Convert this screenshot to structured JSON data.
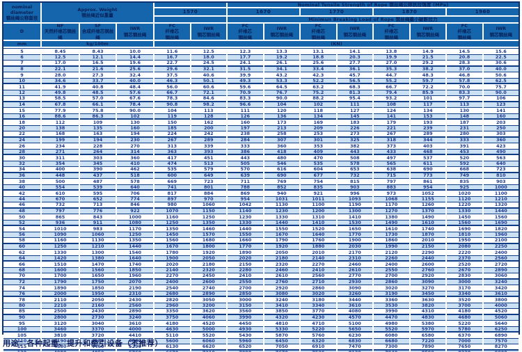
{
  "header": {
    "diameter_title": "nominal\ndiameter\n钢丝绳公称直径",
    "weight_title": "Approx. Weight\n钢丝绳近似重量",
    "tensile_banner": "Nominal Tensile Strength of Rope 钢丝绳公称抗拉强度 (MPa)",
    "breaking_banner": "Minimun Breaking Load of Rope 钢丝绳最小破断拉力",
    "strengths": [
      "1570",
      "1670",
      "1770",
      "1870",
      "1960"
    ],
    "d_symbol": "D",
    "weight_cols": [
      "NF\n天然纤维芯钢丝\n绳",
      "SF\n合成纤维芯钢丝\n绳",
      "IWR\n钢芯钢丝绳"
    ],
    "core_cols": [
      "FC\n纤维芯\n钢丝绳",
      "IWR\n钢芯钢丝绳"
    ],
    "unit_mm": "mm",
    "unit_weight": "kg/100m",
    "unit_load": "(KN)"
  },
  "rows": [
    [
      "5",
      "8.45",
      "8.43",
      "10.0",
      "11.6",
      "12.5",
      "12.3",
      "13.3",
      "13.1",
      "14.1",
      "13.8",
      "14.9",
      "14.5",
      "15.6"
    ],
    [
      "6",
      "12.5",
      "12.1",
      "14.4",
      "16.7",
      "18.0",
      "17.7",
      "19.2",
      "18.8",
      "20.3",
      "19.9",
      "21.5",
      "20.8",
      "22.5"
    ],
    [
      "7",
      "17.0",
      "16.5",
      "19.6",
      "22.7",
      "24.5",
      "24.1",
      "26.1",
      "25.6",
      "27.7",
      "27.0",
      "29.2",
      "28.3",
      "30.6"
    ],
    [
      "8",
      "22.1",
      "21.6",
      "25.6",
      "29.6",
      "32.1",
      "31.5",
      "34.1",
      "33.4",
      "36.1",
      "35.3",
      "38.2",
      "37.0",
      "40.0"
    ],
    [
      "9",
      "28.0",
      "27.3",
      "32.4",
      "37.5",
      "40.6",
      "39.9",
      "43.2",
      "42.3",
      "45.7",
      "44.7",
      "48.3",
      "46.8",
      "50.6"
    ],
    [
      "10",
      "34.6",
      "33.7",
      "40.0",
      "46.3",
      "50.1",
      "49.3",
      "53.3",
      "52.2",
      "56.5",
      "55.2",
      "59.7",
      "57.8",
      "62.5"
    ],
    [
      "11",
      "41.9",
      "40.8",
      "48.4",
      "56.0",
      "60.6",
      "59.6",
      "64.5",
      "63.2",
      "68.3",
      "66.7",
      "72.2",
      "70.0",
      "75.7"
    ],
    [
      "12",
      "49.8",
      "48.5",
      "57.6",
      "66.7",
      "72.1",
      "70.9",
      "76.7",
      "75.2",
      "81.3",
      "79.4",
      "85.9",
      "83.3",
      "90.0"
    ],
    [
      "13",
      "58.5",
      "57.0",
      "67.6",
      "78.3",
      "84.6",
      "83.3",
      "90.0",
      "88.2",
      "95.4",
      "93.2",
      "101",
      "97.7",
      "106"
    ],
    [
      "14",
      "67.8",
      "66.1",
      "78.4",
      "90.8",
      "98.2",
      "96.6",
      "104",
      "102",
      "111",
      "108",
      "117",
      "113",
      "123"
    ],
    [
      "15",
      "77.9",
      "75.8",
      "90.0",
      "104",
      "113",
      "111",
      "120",
      "118",
      "127",
      "124",
      "134",
      "130",
      "141"
    ],
    [
      "16",
      "88.6",
      "86.3",
      "102",
      "119",
      "128",
      "126",
      "136",
      "134",
      "145",
      "141",
      "153",
      "148",
      "160"
    ],
    [
      "18",
      "112",
      "109",
      "130",
      "150",
      "162",
      "160",
      "173",
      "169",
      "183",
      "179",
      "193",
      "187",
      "203"
    ],
    [
      "20",
      "138",
      "135",
      "160",
      "185",
      "200",
      "197",
      "213",
      "209",
      "226",
      "221",
      "239",
      "231",
      "250"
    ],
    [
      "22",
      "168",
      "163",
      "194",
      "224",
      "242",
      "238",
      "258",
      "253",
      "273",
      "267",
      "289",
      "280",
      "303"
    ],
    [
      "24",
      "199",
      "194",
      "230",
      "267",
      "289",
      "284",
      "307",
      "301",
      "325",
      "318",
      "344",
      "333",
      "360"
    ],
    [
      "26",
      "234",
      "228",
      "270",
      "313",
      "339",
      "333",
      "360",
      "353",
      "382",
      "373",
      "403",
      "391",
      "423"
    ],
    [
      "28",
      "271",
      "264",
      "314",
      "363",
      "393",
      "386",
      "418",
      "409",
      "443",
      "433",
      "468",
      "453",
      "490"
    ],
    [
      "30",
      "311",
      "303",
      "360",
      "417",
      "451",
      "443",
      "480",
      "470",
      "508",
      "497",
      "537",
      "520",
      "563"
    ],
    [
      "32",
      "354",
      "345",
      "410",
      "474",
      "513",
      "505",
      "546",
      "535",
      "578",
      "565",
      "611",
      "592",
      "640"
    ],
    [
      "34",
      "400",
      "390",
      "462",
      "535",
      "579",
      "570",
      "616",
      "604",
      "653",
      "638",
      "690",
      "668",
      "723"
    ],
    [
      "36",
      "448",
      "437",
      "518",
      "600",
      "649",
      "639",
      "690",
      "677",
      "732",
      "715",
      "773",
      "749",
      "810"
    ],
    [
      "38",
      "500",
      "487",
      "578",
      "669",
      "723",
      "711",
      "769",
      "754",
      "815",
      "797",
      "861",
      "835",
      "903"
    ],
    [
      "40",
      "554",
      "539",
      "640",
      "741",
      "801",
      "788",
      "852",
      "835",
      "903",
      "883",
      "954",
      "925",
      "1000"
    ],
    [
      "42",
      "610",
      "595",
      "706",
      "817",
      "884",
      "869",
      "940",
      "921",
      "996",
      "973",
      "1052",
      "1020",
      "1100"
    ],
    [
      "44",
      "670",
      "652",
      "774",
      "897",
      "970",
      "954",
      "1031",
      "1011",
      "1093",
      "1068",
      "1155",
      "1120",
      "1210"
    ],
    [
      "46",
      "732",
      "713",
      "846",
      "980",
      "1060",
      "1042",
      "1130",
      "1100",
      "1190",
      "1170",
      "1260",
      "1220",
      "1320"
    ],
    [
      "48",
      "797",
      "776",
      "922",
      "1070",
      "1150",
      "1140",
      "1230",
      "1200",
      "1300",
      "1270",
      "1370",
      "1330",
      "1440"
    ],
    [
      "50",
      "865",
      "843",
      "1000",
      "1160",
      "1250",
      "1230",
      "1330",
      "1310",
      "1410",
      "1380",
      "1490",
      "1450",
      "1560"
    ],
    [
      "52",
      "936",
      "911",
      "1080",
      "1250",
      "1350",
      "1330",
      "1440",
      "1410",
      "1530",
      "1490",
      "1610",
      "1560",
      "1690"
    ],
    [
      "54",
      "1010",
      "983",
      "1170",
      "1350",
      "1460",
      "1440",
      "1550",
      "1520",
      "1650",
      "1610",
      "1740",
      "1690",
      "1820"
    ],
    [
      "56",
      "1090",
      "1060",
      "1250",
      "1450",
      "1570",
      "1550",
      "1670",
      "1640",
      "1770",
      "1730",
      "1870",
      "1810",
      "1960"
    ],
    [
      "58",
      "1160",
      "1130",
      "1350",
      "1560",
      "1680",
      "1660",
      "1790",
      "1760",
      "1900",
      "1860",
      "2010",
      "1950",
      "2100"
    ],
    [
      "60",
      "1250",
      "1210",
      "1440",
      "1670",
      "1800",
      "1770",
      "1920",
      "1880",
      "2030",
      "1990",
      "2150",
      "2080",
      "2250"
    ],
    [
      "62",
      "1330",
      "1300",
      "1540",
      "1780",
      "1920",
      "1890",
      "2050",
      "2010",
      "2170",
      "2120",
      "2290",
      "2220",
      "2400"
    ],
    [
      "64",
      "1420",
      "1380",
      "1640",
      "1900",
      "2050",
      "2020",
      "2180",
      "2140",
      "2310",
      "2260",
      "2440",
      "2370",
      "2560"
    ],
    [
      "66",
      "1510",
      "1470",
      "1740",
      "2020",
      "2180",
      "2150",
      "2320",
      "2270",
      "2460",
      "2400",
      "2600",
      "2520",
      "2720"
    ],
    [
      "68",
      "1600",
      "1560",
      "1850",
      "2140",
      "2320",
      "2280",
      "2460",
      "2410",
      "2610",
      "2550",
      "2760",
      "2670",
      "2890"
    ],
    [
      "70",
      "1700",
      "1650",
      "1960",
      "2270",
      "2450",
      "2410",
      "2610",
      "2560",
      "2770",
      "2700",
      "2920",
      "2830",
      "3060"
    ],
    [
      "72",
      "1790",
      "1750",
      "2070",
      "2400",
      "2600",
      "2550",
      "2760",
      "2710",
      "2930",
      "2860",
      "3090",
      "3000",
      "3240"
    ],
    [
      "74",
      "1890",
      "1850",
      "2190",
      "2540",
      "2740",
      "2700",
      "2920",
      "2860",
      "3090",
      "3020",
      "3270",
      "3170",
      "3420"
    ],
    [
      "76",
      "2000",
      "1950",
      "2310",
      "2680",
      "2890",
      "2850",
      "3080",
      "3020",
      "3260",
      "3190",
      "3450",
      "3340",
      "3610"
    ],
    [
      "78",
      "2110",
      "2050",
      "2430",
      "2820",
      "3050",
      "3000",
      "3240",
      "3180",
      "3440",
      "3360",
      "3630",
      "3520",
      "3800"
    ],
    [
      "80",
      "2210",
      "2160",
      "2560",
      "2960",
      "3200",
      "3150",
      "3410",
      "3340",
      "3610",
      "3530",
      "3820",
      "3700",
      "4000"
    ],
    [
      "85",
      "2500",
      "2430",
      "2890",
      "3350",
      "3620",
      "3560",
      "3850",
      "3770",
      "4080",
      "3990",
      "4310",
      "4180",
      "4520"
    ],
    [
      "90",
      "2800",
      "2730",
      "3240",
      "3750",
      "4060",
      "3990",
      "4320",
      "4230",
      "4570",
      "4470",
      "4830",
      "4680",
      "5060"
    ],
    [
      "95",
      "3120",
      "3040",
      "3610",
      "4180",
      "4520",
      "4450",
      "4810",
      "4710",
      "5100",
      "4980",
      "5380",
      "5220",
      "5640"
    ],
    [
      "100",
      "3460",
      "3370",
      "4000",
      "4630",
      "5000",
      "4930",
      "5330",
      "5220",
      "5650",
      "5520",
      "5970",
      "5780",
      "6250"
    ],
    [
      "105",
      "3810",
      "3720",
      "4410",
      "5110",
      "5520",
      "5430",
      "5870",
      "5760",
      "6230",
      "6080",
      "6580",
      "6370",
      "6890"
    ],
    [
      "110",
      "4190",
      "4080",
      "4840",
      "5600",
      "6060",
      "5960",
      "6450",
      "6320",
      "6830",
      "6680",
      "7220",
      "7000",
      "7570"
    ],
    [
      "115",
      "4580",
      "4460",
      "5290",
      "6130",
      "6620",
      "6520",
      "7050",
      "6910",
      "7470",
      "7300",
      "7890",
      "7650",
      "8270"
    ],
    [
      "120",
      "4980",
      "4850",
      "5760",
      "6670",
      "7210",
      "7090",
      "7670",
      "7520",
      "8130",
      "7940",
      "8590",
      "8330",
      "9000"
    ]
  ],
  "footer": {
    "usage": "用途：各种起重、提升和牵引设备（不推荐）"
  }
}
